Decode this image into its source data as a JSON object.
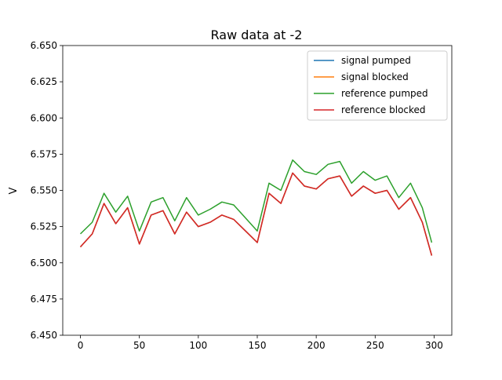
{
  "chart_data": {
    "type": "line",
    "title": "Raw data at -2",
    "xlabel": "",
    "ylabel": "V",
    "xlim": [
      -15,
      315
    ],
    "ylim": [
      6.45,
      6.65
    ],
    "x_ticks": [
      0,
      50,
      100,
      150,
      200,
      250,
      300
    ],
    "y_ticks": [
      6.45,
      6.475,
      6.5,
      6.525,
      6.55,
      6.575,
      6.6,
      6.625,
      6.65
    ],
    "grid": false,
    "legend_position": "top-right",
    "x": [
      0,
      10,
      20,
      30,
      40,
      50,
      60,
      70,
      80,
      90,
      100,
      110,
      120,
      130,
      140,
      150,
      160,
      170,
      180,
      190,
      200,
      210,
      220,
      230,
      240,
      250,
      260,
      270,
      280,
      290,
      298
    ],
    "series": [
      {
        "name": "signal pumped",
        "color": "#1f77b4",
        "values": [
          6.511,
          6.52,
          6.541,
          6.527,
          6.538,
          6.513,
          6.533,
          6.536,
          6.52,
          6.535,
          6.525,
          6.528,
          6.533,
          6.53,
          6.522,
          6.514,
          6.548,
          6.541,
          6.562,
          6.553,
          6.551,
          6.558,
          6.56,
          6.546,
          6.553,
          6.548,
          6.55,
          6.537,
          6.545,
          6.528,
          6.505
        ]
      },
      {
        "name": "signal blocked",
        "color": "#ff7f0e",
        "values": [
          6.511,
          6.52,
          6.541,
          6.527,
          6.538,
          6.513,
          6.533,
          6.536,
          6.52,
          6.535,
          6.525,
          6.528,
          6.533,
          6.53,
          6.522,
          6.514,
          6.548,
          6.541,
          6.562,
          6.553,
          6.551,
          6.558,
          6.56,
          6.546,
          6.553,
          6.548,
          6.55,
          6.537,
          6.545,
          6.528,
          6.505
        ]
      },
      {
        "name": "reference pumped",
        "color": "#2ca02c",
        "values": [
          6.52,
          6.528,
          6.548,
          6.535,
          6.546,
          6.522,
          6.542,
          6.545,
          6.529,
          6.545,
          6.533,
          6.537,
          6.542,
          6.54,
          6.531,
          6.522,
          6.555,
          6.55,
          6.571,
          6.563,
          6.561,
          6.568,
          6.57,
          6.555,
          6.563,
          6.557,
          6.56,
          6.545,
          6.555,
          6.538,
          6.514
        ]
      },
      {
        "name": "reference blocked",
        "color": "#d62728",
        "values": [
          6.511,
          6.52,
          6.541,
          6.527,
          6.538,
          6.513,
          6.533,
          6.536,
          6.52,
          6.535,
          6.525,
          6.528,
          6.533,
          6.53,
          6.522,
          6.514,
          6.548,
          6.541,
          6.562,
          6.553,
          6.551,
          6.558,
          6.56,
          6.546,
          6.553,
          6.548,
          6.55,
          6.537,
          6.545,
          6.528,
          6.505
        ]
      }
    ]
  }
}
